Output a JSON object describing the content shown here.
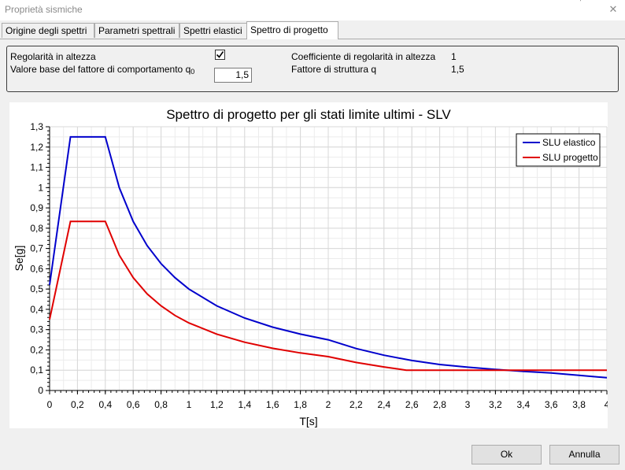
{
  "window": {
    "title": "Proprietà sismiche",
    "close_glyph": "✕"
  },
  "tabs": [
    {
      "label": "Origine degli spettri",
      "active": false
    },
    {
      "label": "Parametri spettrali",
      "active": false
    },
    {
      "label": "Spettri elastici",
      "active": false
    },
    {
      "label": "Spettro di progetto",
      "active": true
    }
  ],
  "params": {
    "regolarita_label": "Regolarità in altezza",
    "regolarita_checked": true,
    "q0_label": "Valore base del fattore di comportamento q",
    "q0_subscript": "0",
    "q0_value": "1,5",
    "coeff_label": "Coefficiente di regolarità in altezza",
    "coeff_value": "1",
    "fattore_label": "Fattore di struttura q",
    "fattore_value": "1,5"
  },
  "chart_data": {
    "type": "line",
    "title": "Spettro di progetto per gli stati limite ultimi - SLV",
    "xlabel": "T[s]",
    "ylabel": "Se[g]",
    "xlim": [
      0,
      4
    ],
    "ylim": [
      0,
      1.3
    ],
    "x_ticks": [
      "0",
      "0,2",
      "0,4",
      "0,6",
      "0,8",
      "1",
      "1,2",
      "1,4",
      "1,6",
      "1,8",
      "2",
      "2,2",
      "2,4",
      "2,6",
      "2,8",
      "3",
      "3,2",
      "3,4",
      "3,6",
      "3,8",
      "4"
    ],
    "y_ticks": [
      "0",
      "0,1",
      "0,2",
      "0,3",
      "0,4",
      "0,5",
      "0,6",
      "0,7",
      "0,8",
      "0,9",
      "1",
      "1,1",
      "1,2",
      "1,3"
    ],
    "grid": true,
    "legend_position": "top-right",
    "series": [
      {
        "name": "SLU elastico",
        "color": "#0000cc",
        "points": [
          [
            0,
            0.52
          ],
          [
            0.15,
            1.25
          ],
          [
            0.4,
            1.25
          ],
          [
            0.5,
            1.0
          ],
          [
            0.6,
            0.833
          ],
          [
            0.7,
            0.714
          ],
          [
            0.8,
            0.625
          ],
          [
            0.9,
            0.556
          ],
          [
            1.0,
            0.5
          ],
          [
            1.2,
            0.417
          ],
          [
            1.4,
            0.357
          ],
          [
            1.6,
            0.3125
          ],
          [
            1.8,
            0.278
          ],
          [
            2.0,
            0.25
          ],
          [
            2.2,
            0.207
          ],
          [
            2.4,
            0.174
          ],
          [
            2.6,
            0.148
          ],
          [
            2.8,
            0.128
          ],
          [
            3.0,
            0.115
          ],
          [
            3.2,
            0.104
          ],
          [
            3.4,
            0.094
          ],
          [
            3.6,
            0.086
          ],
          [
            3.8,
            0.075
          ],
          [
            4.0,
            0.063
          ]
        ]
      },
      {
        "name": "SLU progetto",
        "color": "#e00000",
        "points": [
          [
            0,
            0.35
          ],
          [
            0.15,
            0.833
          ],
          [
            0.4,
            0.833
          ],
          [
            0.5,
            0.667
          ],
          [
            0.6,
            0.556
          ],
          [
            0.7,
            0.476
          ],
          [
            0.8,
            0.417
          ],
          [
            0.9,
            0.37
          ],
          [
            1.0,
            0.333
          ],
          [
            1.2,
            0.278
          ],
          [
            1.4,
            0.238
          ],
          [
            1.6,
            0.208
          ],
          [
            1.8,
            0.185
          ],
          [
            2.0,
            0.167
          ],
          [
            2.2,
            0.138
          ],
          [
            2.4,
            0.116
          ],
          [
            2.56,
            0.1
          ],
          [
            4.0,
            0.1
          ]
        ]
      }
    ]
  },
  "buttons": {
    "ok": "Ok",
    "cancel": "Annulla"
  }
}
